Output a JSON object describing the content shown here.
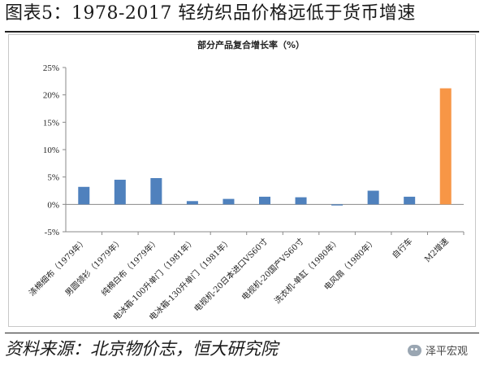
{
  "figure": {
    "title": "图表5：1978-2017 轻纺织品价格远低于货币增速",
    "source": "资料来源：北京物价志，恒大研究院",
    "brand": "泽平宏观",
    "brand_icon": "wechat-icon"
  },
  "chart_data": {
    "type": "bar",
    "title": "部分产品复合增长率（%）",
    "categories": [
      "涤棉细布（1979年）",
      "男圆领衫（1979年）",
      "纯棉白布（1979年）",
      "电冰箱-100升单门（1981年）",
      "电冰箱-130升单门（1981年）",
      "电视机-20日本进口VS60寸",
      "电视机-20国产VS60寸",
      "洗衣机-单缸（1980年）",
      "电风扇（1980年）",
      "自行车",
      "M2增速"
    ],
    "values": [
      3.2,
      4.5,
      4.8,
      0.6,
      1.0,
      1.4,
      1.3,
      -0.2,
      2.5,
      1.4,
      21.2
    ],
    "yticks": [
      "-5%",
      "0%",
      "5%",
      "10%",
      "15%",
      "20%",
      "25%"
    ],
    "ylim": [
      -5,
      25
    ],
    "colors": {
      "default": "#4f81bd",
      "highlight": "#f79646"
    },
    "highlight_index": 10,
    "grid": false,
    "legend": "none"
  }
}
